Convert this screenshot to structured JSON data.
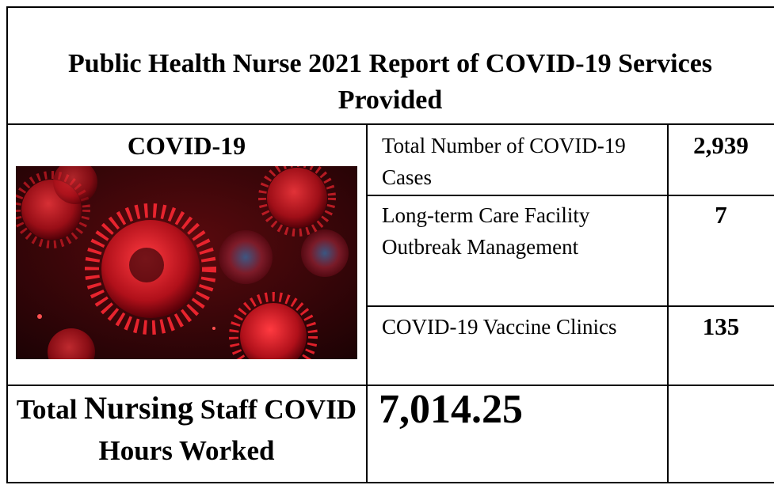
{
  "header": {
    "title": "Public Health Nurse 2021 Report of COVID-19 Services Provided"
  },
  "image_heading": "COVID-19",
  "table": {
    "rows": [
      [
        "Total Number of COVID-19 Cases",
        "2,939"
      ],
      [
        "Long-term Care Facility Outbreak Management",
        "7"
      ],
      [
        "COVID-19 Vaccine Clinics",
        "135"
      ]
    ]
  },
  "total": {
    "label_parts": [
      "Total",
      "Nursing",
      "Staff COVID Hours Worked"
    ],
    "value": "7,014.25"
  }
}
